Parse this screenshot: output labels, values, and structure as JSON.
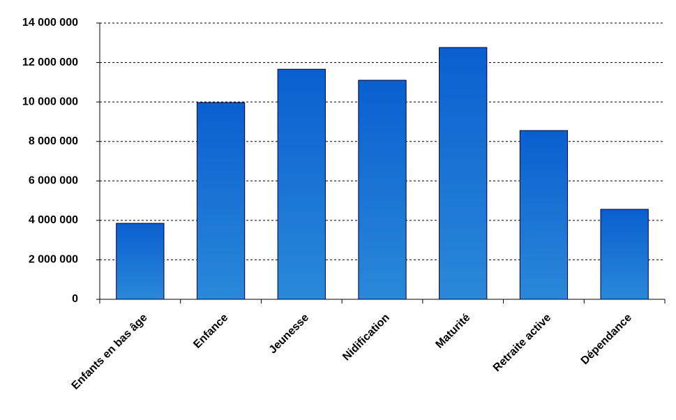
{
  "chart_data": {
    "type": "bar",
    "categories": [
      "Enfants en bas âge",
      "Enfance",
      "Jeunesse",
      "Nidification",
      "Maturité",
      "Retraite active",
      "Dépendance"
    ],
    "values": [
      3850000,
      9970000,
      11660000,
      11100000,
      12760000,
      8550000,
      4560000
    ],
    "color": "#0a5fd0",
    "ylim": [
      0,
      14000000
    ],
    "yticks": [
      {
        "value": 0,
        "label": "0"
      },
      {
        "value": 2000000,
        "label": "2 000 000"
      },
      {
        "value": 4000000,
        "label": "4 000 000"
      },
      {
        "value": 6000000,
        "label": "6 000 000"
      },
      {
        "value": 8000000,
        "label": "8 000 000"
      },
      {
        "value": 10000000,
        "label": "10 000 000"
      },
      {
        "value": 12000000,
        "label": "12 000 000"
      },
      {
        "value": 14000000,
        "label": "14 000 000"
      }
    ],
    "grid": true
  }
}
